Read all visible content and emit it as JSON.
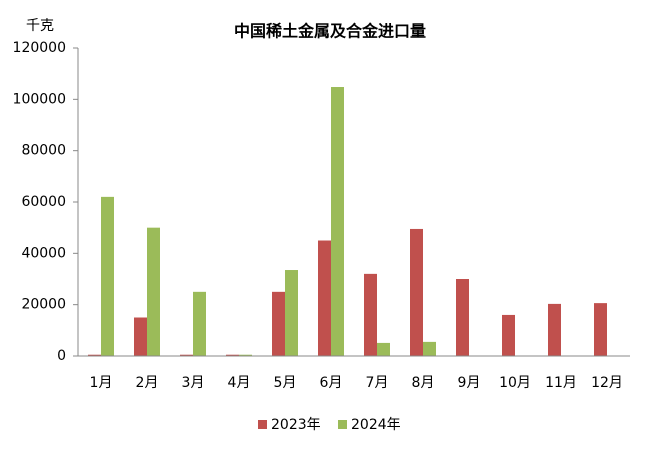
{
  "chart_data": {
    "type": "bar",
    "title": "中国稀土金属及合金进口量",
    "y_label": "千克",
    "categories": [
      "1月",
      "2月",
      "3月",
      "4月",
      "5月",
      "6月",
      "7月",
      "8月",
      "9月",
      "10月",
      "11月",
      "12月"
    ],
    "series": [
      {
        "name": "2023年",
        "color": "#c0504d",
        "values": [
          500,
          15000,
          500,
          500,
          25000,
          45000,
          32000,
          49500,
          30000,
          16000,
          20300,
          20600
        ]
      },
      {
        "name": "2024年",
        "color": "#9bbb59",
        "values": [
          62000,
          50000,
          25000,
          500,
          33500,
          104800,
          5100,
          5500,
          null,
          null,
          null,
          null
        ]
      }
    ],
    "ylim": [
      0,
      120000
    ],
    "yticks": [
      0,
      20000,
      40000,
      60000,
      80000,
      100000,
      120000
    ],
    "grid": false,
    "legend": "bottom"
  }
}
